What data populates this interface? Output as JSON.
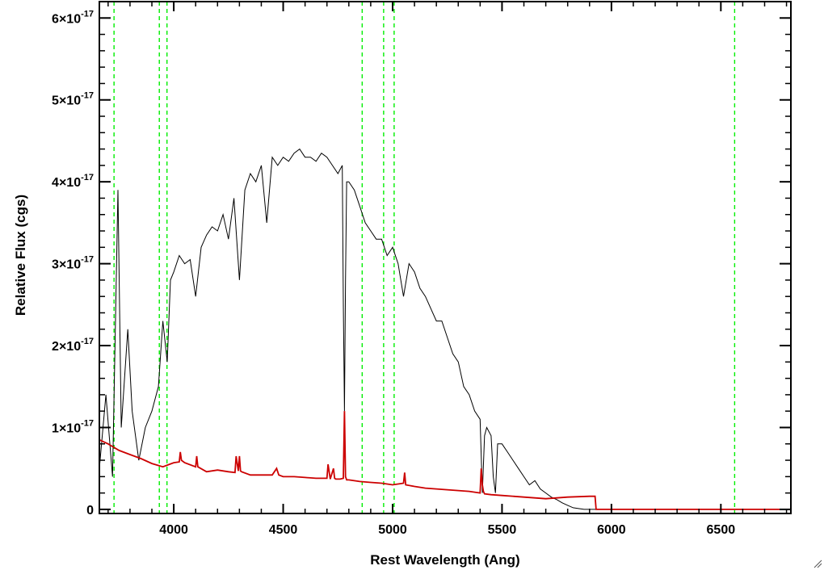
{
  "chart_data": {
    "type": "line",
    "title": "",
    "xlabel": "Rest Wavelength (Ang)",
    "ylabel": "Relative Flux (cgs)",
    "xlim": [
      3660,
      6820
    ],
    "ylim": [
      -0.05,
      6.2
    ],
    "y_scale_exponent": -17,
    "x_ticks": [
      4000,
      4500,
      5000,
      5500,
      6000,
      6500
    ],
    "x_tick_labels": [
      "4000",
      "4500",
      "5000",
      "5500",
      "6000",
      "6500"
    ],
    "y_ticks": [
      0,
      1,
      2,
      3,
      4,
      5,
      6
    ],
    "y_tick_labels": [
      {
        "mantissa": "0",
        "times": "",
        "base": "",
        "exp": ""
      },
      {
        "mantissa": "1",
        "times": "×",
        "base": "10",
        "exp": "-17"
      },
      {
        "mantissa": "2",
        "times": "×",
        "base": "10",
        "exp": "-17"
      },
      {
        "mantissa": "3",
        "times": "×",
        "base": "10",
        "exp": "-17"
      },
      {
        "mantissa": "4",
        "times": "×",
        "base": "10",
        "exp": "-17"
      },
      {
        "mantissa": "5",
        "times": "×",
        "base": "10",
        "exp": "-17"
      },
      {
        "mantissa": "6",
        "times": "×",
        "base": "10",
        "exp": "-17"
      }
    ],
    "grid": false,
    "legend": "none",
    "colors": {
      "spectrum": "#000000",
      "error": "#cc0000",
      "line_markers": "#00ee00"
    },
    "reference_lines_x": [
      3727,
      3934,
      3969,
      4861,
      4959,
      5007,
      6563
    ],
    "series": [
      {
        "x": [
          3660,
          3690,
          3720,
          3745,
          3760,
          3790,
          3810,
          3840,
          3870,
          3900,
          3930,
          3950,
          3970,
          3985,
          4000,
          4025,
          4050,
          4075,
          4100,
          4125,
          4150,
          4175,
          4200,
          4225,
          4250,
          4275,
          4300,
          4325,
          4350,
          4375,
          4400,
          4425,
          4450,
          4475,
          4500,
          4525,
          4550,
          4575,
          4600,
          4625,
          4650,
          4675,
          4700,
          4725,
          4750,
          4770,
          4775,
          4780,
          4785,
          4790,
          4800,
          4825,
          4850,
          4875,
          4900,
          4925,
          4950,
          4975,
          5000,
          5025,
          5050,
          5075,
          5100,
          5125,
          5150,
          5175,
          5200,
          5225,
          5250,
          5275,
          5300,
          5325,
          5350,
          5375,
          5400,
          5410,
          5420,
          5430,
          5450,
          5460,
          5470,
          5480,
          5500,
          5525,
          5550,
          5575,
          5600,
          5625,
          5650,
          5675,
          5700,
          5725,
          5750,
          5775,
          5800,
          5825,
          5850,
          5875,
          5900,
          5925,
          5930,
          6000,
          6200,
          6400,
          6600,
          6820
        ],
        "values": [
          0.5,
          1.4,
          0.4,
          3.9,
          1.0,
          2.2,
          1.2,
          0.6,
          1.0,
          1.2,
          1.5,
          2.3,
          1.8,
          2.8,
          2.9,
          3.1,
          3.0,
          3.05,
          2.6,
          3.2,
          3.35,
          3.45,
          3.4,
          3.6,
          3.3,
          3.8,
          2.8,
          3.9,
          4.1,
          4.0,
          4.2,
          3.5,
          4.3,
          4.2,
          4.3,
          4.25,
          4.35,
          4.4,
          4.3,
          4.3,
          4.25,
          4.35,
          4.3,
          4.2,
          4.1,
          4.2,
          2.5,
          1.2,
          2.8,
          4.0,
          4.0,
          3.9,
          3.7,
          3.5,
          3.4,
          3.3,
          3.3,
          3.1,
          3.2,
          3.0,
          2.6,
          3.0,
          2.9,
          2.7,
          2.6,
          2.45,
          2.3,
          2.3,
          2.1,
          1.9,
          1.8,
          1.5,
          1.4,
          1.2,
          1.1,
          0.2,
          0.9,
          1.0,
          0.9,
          0.4,
          0.2,
          0.8,
          0.8,
          0.7,
          0.6,
          0.5,
          0.4,
          0.3,
          0.35,
          0.25,
          0.2,
          0.15,
          0.12,
          0.08,
          0.05,
          0.02,
          0.01,
          0.0,
          0.0,
          0.0,
          0.0,
          0.0,
          0.0,
          0.0,
          0.0,
          0.0
        ]
      },
      {
        "x": [
          3660,
          3700,
          3750,
          3800,
          3850,
          3900,
          3950,
          3980,
          4000,
          4025,
          4030,
          4035,
          4050,
          4100,
          4105,
          4110,
          4150,
          4200,
          4250,
          4280,
          4285,
          4295,
          4300,
          4305,
          4310,
          4350,
          4400,
          4450,
          4470,
          4480,
          4500,
          4550,
          4600,
          4650,
          4700,
          4705,
          4715,
          4730,
          4735,
          4740,
          4760,
          4775,
          4780,
          4785,
          4790,
          4800,
          4850,
          4900,
          4950,
          5000,
          5050,
          5055,
          5060,
          5100,
          5150,
          5200,
          5250,
          5300,
          5350,
          5400,
          5405,
          5410,
          5415,
          5420,
          5450,
          5500,
          5600,
          5700,
          5800,
          5900,
          5925,
          5930,
          6000,
          6200,
          6400,
          6600,
          6820
        ],
        "values": [
          0.85,
          0.8,
          0.72,
          0.67,
          0.62,
          0.56,
          0.52,
          0.55,
          0.57,
          0.58,
          0.7,
          0.6,
          0.57,
          0.52,
          0.65,
          0.52,
          0.46,
          0.48,
          0.46,
          0.45,
          0.65,
          0.47,
          0.65,
          0.47,
          0.46,
          0.42,
          0.42,
          0.42,
          0.5,
          0.42,
          0.4,
          0.4,
          0.39,
          0.38,
          0.38,
          0.55,
          0.37,
          0.5,
          0.38,
          0.37,
          0.37,
          0.38,
          1.2,
          0.4,
          0.36,
          0.36,
          0.34,
          0.33,
          0.32,
          0.3,
          0.32,
          0.45,
          0.3,
          0.28,
          0.26,
          0.25,
          0.24,
          0.23,
          0.22,
          0.2,
          0.5,
          0.3,
          0.22,
          0.19,
          0.18,
          0.17,
          0.15,
          0.13,
          0.15,
          0.16,
          0.16,
          0.0,
          0.0,
          0.0,
          0.0,
          0.0,
          0.0
        ]
      }
    ]
  }
}
